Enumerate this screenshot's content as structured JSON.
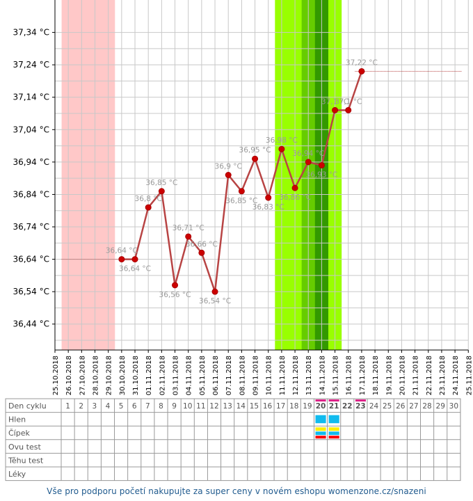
{
  "chart_data": {
    "type": "line",
    "ylim": [
      36.36,
      37.44
    ],
    "y_ticks": [
      37.34,
      37.24,
      37.14,
      37.04,
      36.94,
      36.84,
      36.74,
      36.64,
      36.54,
      36.44
    ],
    "y_tick_labels": [
      "37,34 °C",
      "37,24 °C",
      "37,14 °C",
      "37,04 °C",
      "36,94 °C",
      "36,84 °C",
      "36,74 °C",
      "36,64 °C",
      "36,54 °C",
      "36,44 °C"
    ],
    "dates": [
      "25.10.2018",
      "26.10.2018",
      "27.10.2018",
      "28.10.2018",
      "29.10.2018",
      "30.10.2018",
      "31.10.2018",
      "01.11.2018",
      "02.11.2018",
      "03.11.2018",
      "04.11.2018",
      "05.11.2018",
      "06.11.2018",
      "07.11.2018",
      "08.11.2018",
      "09.11.2018",
      "10.11.2018",
      "11.11.2018",
      "12.11.2018",
      "13.11.2018",
      "14.11.2018",
      "15.11.2018",
      "16.11.2018",
      "17.11.2018",
      "18.11.2018",
      "19.11.2018",
      "20.11.2018",
      "21.11.2018",
      "22.11.2018",
      "23.11.2018",
      "24.11.2018",
      "25.11.2018"
    ],
    "series": [
      {
        "color": "#b84444",
        "points": [
          {
            "x": "30.10.2018",
            "y": 36.64,
            "label": "36,64 °C"
          },
          {
            "x": "31.10.2018",
            "y": 36.64,
            "label": "36,64 °C"
          },
          {
            "x": "01.11.2018",
            "y": 36.8,
            "label": "36,8 °C"
          },
          {
            "x": "02.11.2018",
            "y": 36.85,
            "label": "36,85 °C"
          },
          {
            "x": "03.11.2018",
            "y": 36.56,
            "label": "36,56 °C"
          },
          {
            "x": "04.11.2018",
            "y": 36.71,
            "label": "36,71 °C"
          },
          {
            "x": "05.11.2018",
            "y": 36.66,
            "label": "36,66 °C"
          },
          {
            "x": "06.11.2018",
            "y": 36.54,
            "label": "36,54 °C"
          },
          {
            "x": "07.11.2018",
            "y": 36.9,
            "label": "36,9 °C"
          },
          {
            "x": "08.11.2018",
            "y": 36.85,
            "label": "36,85 °C"
          },
          {
            "x": "09.11.2018",
            "y": 36.95,
            "label": "36,95 °C"
          },
          {
            "x": "10.11.2018",
            "y": 36.83,
            "label": "36,83 °C"
          },
          {
            "x": "11.11.2018",
            "y": 36.98,
            "label": "36,98 °C"
          },
          {
            "x": "12.11.2018",
            "y": 36.86,
            "label": "36,86 °C"
          },
          {
            "x": "13.11.2018",
            "y": 36.94,
            "label": "36,94 °C"
          },
          {
            "x": "14.11.2018",
            "y": 36.93,
            "label": "36,93 °C"
          },
          {
            "x": "15.11.2018",
            "y": 37.1,
            "label": "37,1 °C"
          },
          {
            "x": "16.11.2018",
            "y": 37.1,
            "label": "37,1 °C"
          },
          {
            "x": "17.11.2018",
            "y": 37.22,
            "label": "37,22 °C"
          }
        ]
      }
    ],
    "reference_lines": [
      {
        "y": 36.64,
        "from": "26.10.2018",
        "to": "30.10.2018",
        "color": "#b84444"
      },
      {
        "y": 37.22,
        "from": "17.11.2018",
        "to": "24.11.2018",
        "color": "#b84444"
      }
    ],
    "bands": [
      {
        "from": "26.10.2018",
        "to": "29.10.2018",
        "color": "#ffc8c8"
      },
      {
        "from": "11.11.2018",
        "to": "15.11.2018",
        "color": "#99ff00"
      },
      {
        "from": "13.11.2018",
        "to": "14.11.2018",
        "color": "#66cc00"
      },
      {
        "from": "14.11.2018",
        "to": "14.11.2018",
        "color": "#339900"
      }
    ],
    "grid": true
  },
  "cycle_table": {
    "row_labels": [
      "Den cyklu",
      "Hlen",
      "Čípek",
      "Ovu test",
      "Těhu test",
      "Léky"
    ],
    "day_numbers": [
      "1",
      "2",
      "3",
      "4",
      "5",
      "6",
      "7",
      "8",
      "9",
      "10",
      "11",
      "12",
      "13",
      "14",
      "15",
      "16",
      "17",
      "18",
      "19",
      "20",
      "21",
      "22",
      "23",
      "24",
      "25",
      "26",
      "27",
      "28",
      "29",
      "30"
    ],
    "bold_days": [
      "20",
      "21",
      "22",
      "23"
    ],
    "highlight_days": [
      "20",
      "21",
      "23"
    ],
    "colors": {
      "highlight": "#dd2288",
      "hlen": "#11bbee",
      "cipek_yellow": "#ffee00",
      "cipek_blue": "#11bbee",
      "ovu_red": "#ff0000"
    },
    "marks": {
      "hlen": [
        "20",
        "21"
      ],
      "cipek": [
        "20",
        "21"
      ],
      "ovu_test": [
        "20",
        "21"
      ]
    }
  },
  "footer": {
    "text": "Vše pro podporu početí nakupujte za super ceny v novém eshopu womenzone.cz/snazeni"
  }
}
